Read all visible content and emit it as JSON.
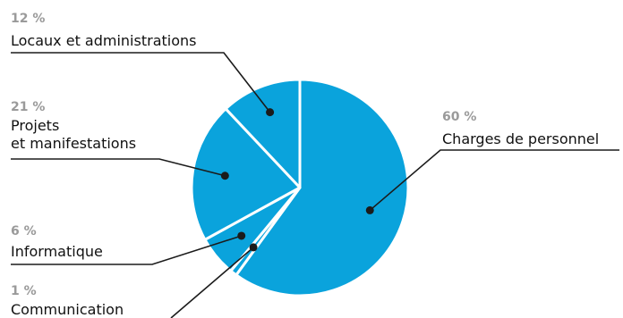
{
  "chart_data": {
    "type": "pie",
    "slices": [
      {
        "label": "Charges de personnel",
        "label_lines": [
          "Charges de personnel"
        ],
        "percent_text": "60 %",
        "value": 60
      },
      {
        "label": "Communication",
        "label_lines": [
          "Communication"
        ],
        "percent_text": "1 %",
        "value": 1
      },
      {
        "label": "Informatique",
        "label_lines": [
          "Informatique"
        ],
        "percent_text": "6 %",
        "value": 6
      },
      {
        "label": "Projets et manifestations",
        "label_lines": [
          "Projets",
          "et manifestations"
        ],
        "percent_text": "21 %",
        "value": 21
      },
      {
        "label": "Locaux et administrations",
        "label_lines": [
          "Locaux et administrations"
        ],
        "percent_text": "12 %",
        "value": 12
      }
    ],
    "colors": {
      "slice": "#0aa3dc",
      "separator": "#ffffff",
      "dot": "#1b1b1b",
      "leader": "#1b1b1b",
      "percent": "#9a9a9a"
    }
  }
}
